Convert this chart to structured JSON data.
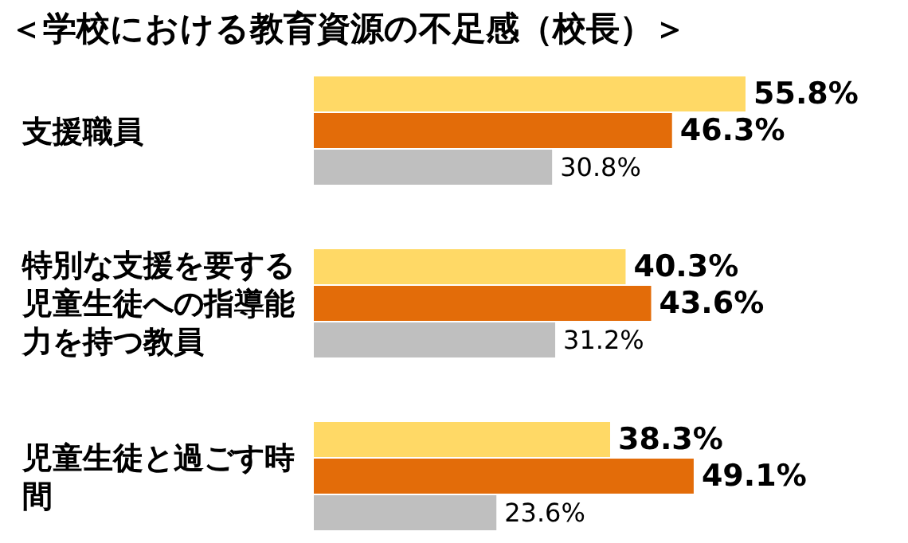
{
  "chart_data": {
    "type": "bar",
    "orientation": "horizontal",
    "title": "＜学校における教育資源の不足感（校長）＞",
    "categories": [
      "支援職員",
      "特別な支援を要する児童生徒への指導能力を持つ教員",
      "児童生徒と過ごす時間"
    ],
    "series": [
      {
        "color": "#ffd966",
        "values": [
          55.8,
          40.3,
          38.3
        ],
        "value_labels": [
          "55.8%",
          "40.3%",
          "38.3%"
        ]
      },
      {
        "color": "#e36c09",
        "values": [
          46.3,
          43.6,
          49.1
        ],
        "value_labels": [
          "46.3%",
          "43.6%",
          "49.1%"
        ]
      },
      {
        "color": "#bfbfbf",
        "values": [
          30.8,
          31.2,
          23.6
        ],
        "value_labels": [
          "30.8%",
          "31.2%",
          "23.6%"
        ]
      }
    ]
  }
}
